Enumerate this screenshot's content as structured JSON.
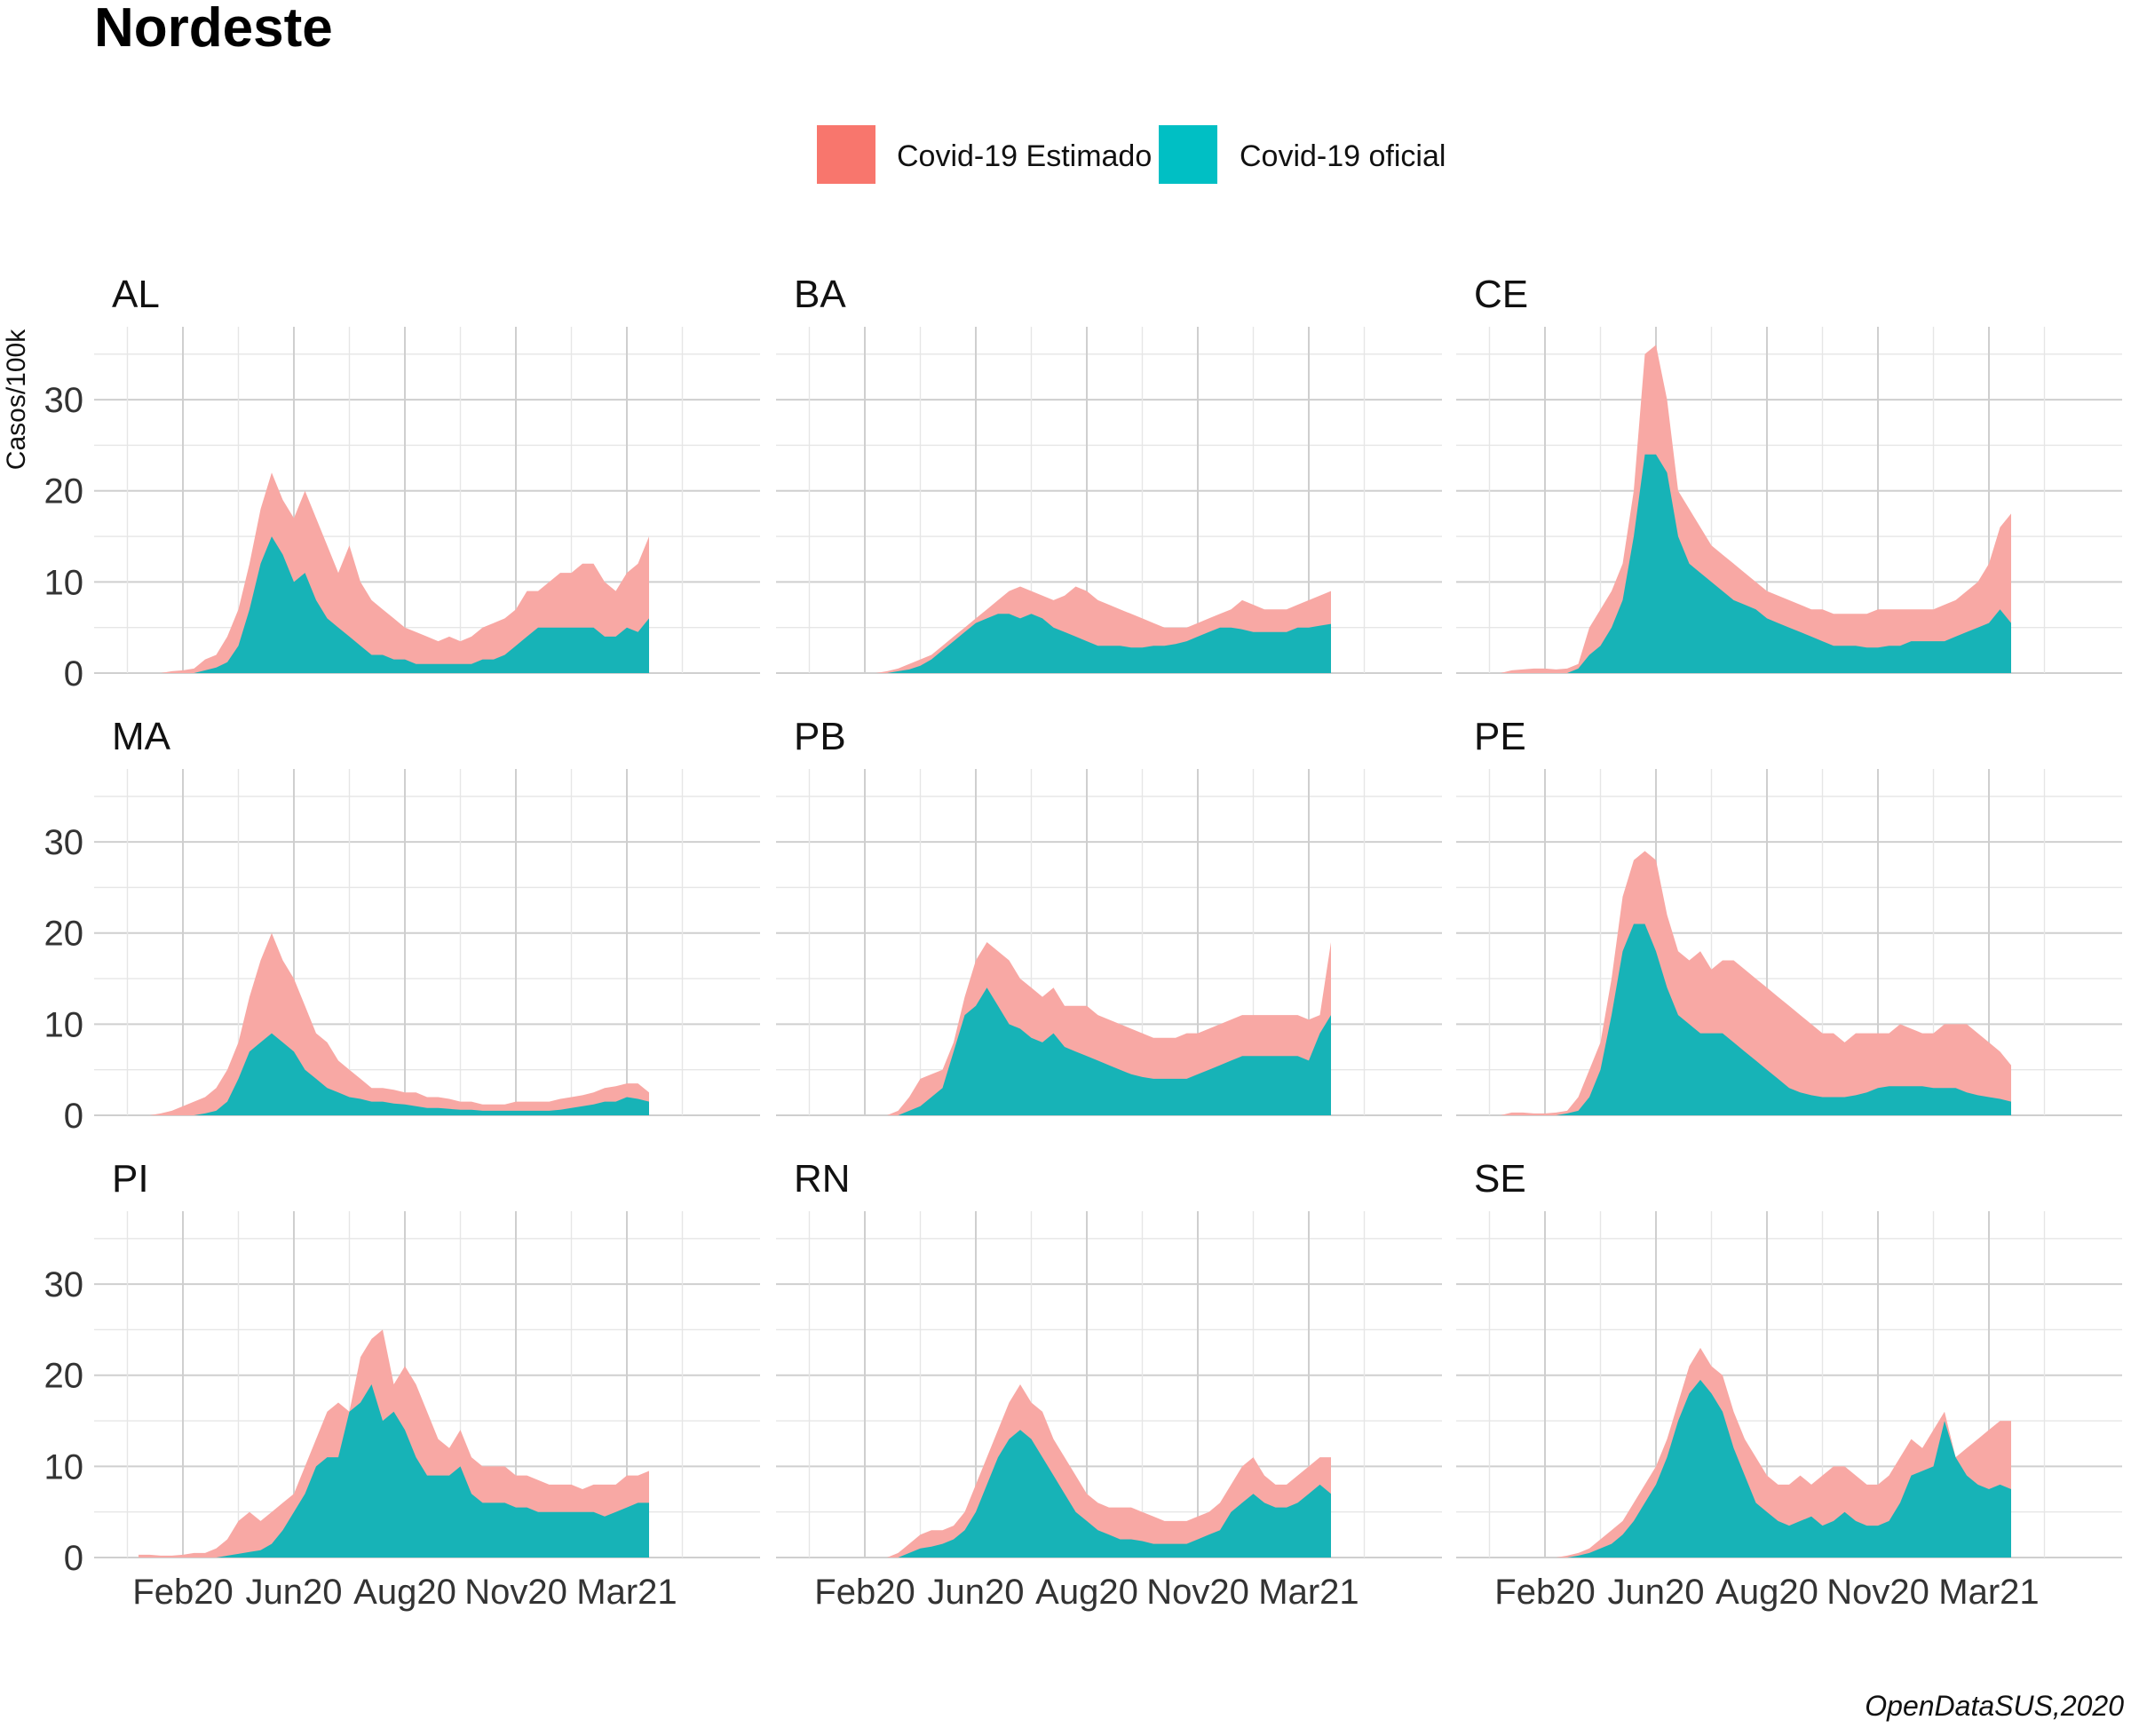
{
  "chart_data": {
    "type": "area",
    "title": "Nordeste",
    "ylabel": "Casos/100k",
    "xlabel": "",
    "caption": "OpenDataSUS,2020",
    "ylim": [
      0,
      38
    ],
    "yticks": [
      0,
      10,
      20,
      30
    ],
    "xlim": [
      -4,
      56
    ],
    "xticks": [
      {
        "label": "Feb20",
        "pos": 4
      },
      {
        "label": "Jun20",
        "pos": 14
      },
      {
        "label": "Aug20",
        "pos": 24
      },
      {
        "label": "Nov20",
        "pos": 34
      },
      {
        "label": "Mar21",
        "pos": 44
      }
    ],
    "grid": true,
    "legend_position": "top",
    "legend": [
      {
        "name": "Covid-19 Estimado",
        "color": "#F8766D"
      },
      {
        "name": "Covid-19 oficial",
        "color": "#00BFC4"
      }
    ],
    "colors": {
      "estimado_fill": "#F8A8A4",
      "oficial_fill": "#17B3B7"
    },
    "facets": [
      {
        "name": "AL",
        "x_start": 0,
        "estimado": [
          0,
          0,
          0,
          0.2,
          0.3,
          0.5,
          1.5,
          2,
          4,
          7,
          12,
          18,
          22,
          19,
          17,
          20,
          17,
          14,
          11,
          14,
          10,
          8,
          7,
          6,
          5,
          4.5,
          4,
          3.5,
          4,
          3.5,
          4,
          5,
          5.5,
          6,
          7,
          9,
          9,
          10,
          11,
          11,
          12,
          12,
          10,
          9,
          11,
          12,
          15
        ],
        "oficial": [
          0,
          0,
          0,
          0,
          0,
          0,
          0.3,
          0.6,
          1.2,
          3,
          7,
          12,
          15,
          13,
          10,
          11,
          8,
          6,
          5,
          4,
          3,
          2,
          2,
          1.5,
          1.5,
          1,
          1,
          1,
          1,
          1,
          1,
          1.5,
          1.5,
          2,
          3,
          4,
          5,
          5,
          5,
          5,
          5,
          5,
          4,
          4,
          5,
          4.5,
          6
        ]
      },
      {
        "name": "BA",
        "x_start": 0,
        "estimado": [
          0,
          0,
          0,
          0,
          0,
          0,
          0.2,
          0.5,
          1,
          1.5,
          2,
          3,
          4,
          5,
          6,
          7,
          8,
          9,
          9.5,
          9,
          8.5,
          8,
          8.5,
          9.5,
          9,
          8,
          7.5,
          7,
          6.5,
          6,
          5.5,
          5,
          5,
          5,
          5.5,
          6,
          6.5,
          7,
          8,
          7.5,
          7,
          7,
          7,
          7.5,
          8,
          8.5,
          9
        ],
        "oficial": [
          0,
          0,
          0,
          0,
          0,
          0,
          0,
          0.2,
          0.4,
          0.8,
          1.5,
          2.5,
          3.5,
          4.5,
          5.5,
          6,
          6.5,
          6.5,
          6,
          6.5,
          6,
          5,
          4.5,
          4,
          3.5,
          3,
          3,
          3,
          2.8,
          2.8,
          3,
          3,
          3.2,
          3.5,
          4,
          4.5,
          5,
          5,
          4.8,
          4.5,
          4.5,
          4.5,
          4.5,
          5,
          5,
          5.2,
          5.4
        ]
      },
      {
        "name": "CE",
        "x_start": 0,
        "estimado": [
          0,
          0.3,
          0.4,
          0.5,
          0.5,
          0.4,
          0.5,
          1,
          5,
          7,
          9,
          12,
          20,
          35,
          36,
          30,
          20,
          18,
          16,
          14,
          13,
          12,
          11,
          10,
          9,
          8.5,
          8,
          7.5,
          7,
          7,
          6.5,
          6.5,
          6.5,
          6.5,
          7,
          7,
          7,
          7,
          7,
          7,
          7.5,
          8,
          9,
          10,
          12,
          16,
          17.5
        ],
        "oficial": [
          0,
          0,
          0,
          0,
          0,
          0,
          0,
          0.5,
          2,
          3,
          5,
          8,
          15,
          24,
          24,
          22,
          15,
          12,
          11,
          10,
          9,
          8,
          7.5,
          7,
          6,
          5.5,
          5,
          4.5,
          4,
          3.5,
          3,
          3,
          3,
          2.8,
          2.8,
          3,
          3,
          3.5,
          3.5,
          3.5,
          3.5,
          4,
          4.5,
          5,
          5.5,
          7,
          5.5
        ]
      },
      {
        "name": "MA",
        "x_start": 0,
        "estimado": [
          0,
          0,
          0.2,
          0.5,
          1,
          1.5,
          2,
          3,
          5,
          8,
          13,
          17,
          20,
          17,
          15,
          12,
          9,
          8,
          6,
          5,
          4,
          3,
          3,
          2.8,
          2.5,
          2.5,
          2,
          2,
          1.8,
          1.5,
          1.5,
          1.2,
          1.2,
          1.2,
          1.5,
          1.5,
          1.5,
          1.5,
          1.8,
          2,
          2.2,
          2.5,
          3,
          3.2,
          3.5,
          3.5,
          2.5
        ],
        "oficial": [
          0,
          0,
          0,
          0,
          0,
          0,
          0.2,
          0.5,
          1.5,
          4,
          7,
          8,
          9,
          8,
          7,
          5,
          4,
          3,
          2.5,
          2,
          1.8,
          1.5,
          1.5,
          1.3,
          1.2,
          1,
          0.8,
          0.8,
          0.7,
          0.6,
          0.6,
          0.5,
          0.5,
          0.5,
          0.5,
          0.5,
          0.5,
          0.5,
          0.6,
          0.8,
          1,
          1.2,
          1.5,
          1.5,
          2,
          1.8,
          1.5
        ]
      },
      {
        "name": "PB",
        "x_start": 0,
        "estimado": [
          0,
          0,
          0,
          0,
          0,
          0,
          0,
          0.5,
          2,
          4,
          4.5,
          5,
          8,
          13,
          17,
          19,
          18,
          17,
          15,
          14,
          13,
          14,
          12,
          12,
          12,
          11,
          10.5,
          10,
          9.5,
          9,
          8.5,
          8.5,
          8.5,
          9,
          9,
          9.5,
          10,
          10.5,
          11,
          11,
          11,
          11,
          11,
          11,
          10.5,
          11,
          19
        ],
        "oficial": [
          0,
          0,
          0,
          0,
          0,
          0,
          0,
          0,
          0.5,
          1,
          2,
          3,
          7,
          11,
          12,
          14,
          12,
          10,
          9.5,
          8.5,
          8,
          9,
          7.5,
          7,
          6.5,
          6,
          5.5,
          5,
          4.5,
          4.2,
          4,
          4,
          4,
          4,
          4.5,
          5,
          5.5,
          6,
          6.5,
          6.5,
          6.5,
          6.5,
          6.5,
          6.5,
          6,
          9,
          11
        ]
      },
      {
        "name": "PE",
        "x_start": 0,
        "estimado": [
          0,
          0.3,
          0.3,
          0.2,
          0.2,
          0.3,
          0.5,
          2,
          5,
          8,
          15,
          24,
          28,
          29,
          28,
          22,
          18,
          17,
          18,
          16,
          17,
          17,
          16,
          15,
          14,
          13,
          12,
          11,
          10,
          9,
          9,
          8,
          9,
          9,
          9,
          9,
          10,
          9.5,
          9,
          9,
          10,
          10,
          10,
          9,
          8,
          7,
          5.5
        ],
        "oficial": [
          0,
          0,
          0,
          0,
          0,
          0,
          0.2,
          0.5,
          2,
          5,
          11,
          18,
          21,
          21,
          18,
          14,
          11,
          10,
          9,
          9,
          9,
          8,
          7,
          6,
          5,
          4,
          3,
          2.5,
          2.2,
          2,
          2,
          2,
          2.2,
          2.5,
          3,
          3.2,
          3.2,
          3.2,
          3.2,
          3,
          3,
          3,
          2.5,
          2.2,
          2,
          1.8,
          1.5
        ]
      },
      {
        "name": "PI",
        "x_start": 0,
        "estimado": [
          0.3,
          0.3,
          0.2,
          0.2,
          0.3,
          0.5,
          0.5,
          1,
          2,
          4,
          5,
          4,
          5,
          6,
          7,
          10,
          13,
          16,
          17,
          16,
          22,
          24,
          25,
          19,
          21,
          19,
          16,
          13,
          12,
          14,
          11,
          10,
          10,
          10,
          9,
          9,
          8.5,
          8,
          8,
          8,
          7.5,
          8,
          8,
          8,
          9,
          9,
          9.5
        ],
        "oficial": [
          0,
          0,
          0,
          0,
          0,
          0,
          0,
          0,
          0.2,
          0.4,
          0.6,
          0.8,
          1.5,
          3,
          5,
          7,
          10,
          11,
          11,
          16,
          17,
          19,
          15,
          16,
          14,
          11,
          9,
          9,
          9,
          10,
          7,
          6,
          6,
          6,
          5.5,
          5.5,
          5,
          5,
          5,
          5,
          5,
          5,
          4.5,
          5,
          5.5,
          6,
          6
        ]
      },
      {
        "name": "RN",
        "x_start": 0,
        "estimado": [
          0,
          0,
          0,
          0,
          0,
          0,
          0,
          0.5,
          1.5,
          2.5,
          3,
          3,
          3.5,
          5,
          8,
          11,
          14,
          17,
          19,
          17,
          16,
          13,
          11,
          9,
          7,
          6,
          5.5,
          5.5,
          5.5,
          5,
          4.5,
          4,
          4,
          4,
          4.5,
          5,
          6,
          8,
          10,
          11,
          9,
          8,
          8,
          9,
          10,
          11,
          11
        ],
        "oficial": [
          0,
          0,
          0,
          0,
          0,
          0,
          0,
          0,
          0.5,
          1,
          1.2,
          1.5,
          2,
          3,
          5,
          8,
          11,
          13,
          14,
          13,
          11,
          9,
          7,
          5,
          4,
          3,
          2.5,
          2,
          2,
          1.8,
          1.5,
          1.5,
          1.5,
          1.5,
          2,
          2.5,
          3,
          5,
          6,
          7,
          6,
          5.5,
          5.5,
          6,
          7,
          8,
          7
        ]
      },
      {
        "name": "SE",
        "x_start": 0,
        "estimado": [
          0,
          0,
          0,
          0,
          0,
          0,
          0.2,
          0.5,
          1,
          2,
          3,
          4,
          6,
          8,
          10,
          13,
          17,
          21,
          23,
          21,
          20,
          16,
          13,
          11,
          9,
          8,
          8,
          9,
          8,
          9,
          10,
          10,
          9,
          8,
          8,
          9,
          11,
          13,
          12,
          14,
          16,
          11,
          12,
          13,
          14,
          15,
          15
        ],
        "oficial": [
          0,
          0,
          0,
          0,
          0,
          0,
          0,
          0.2,
          0.5,
          1,
          1.5,
          2.5,
          4,
          6,
          8,
          11,
          15,
          18,
          19.5,
          18,
          16,
          12,
          9,
          6,
          5,
          4,
          3.5,
          4,
          4.5,
          3.5,
          4,
          5,
          4,
          3.5,
          3.5,
          4,
          6,
          9,
          9.5,
          10,
          15,
          11,
          9,
          8,
          7.5,
          8,
          7.5
        ]
      }
    ]
  }
}
